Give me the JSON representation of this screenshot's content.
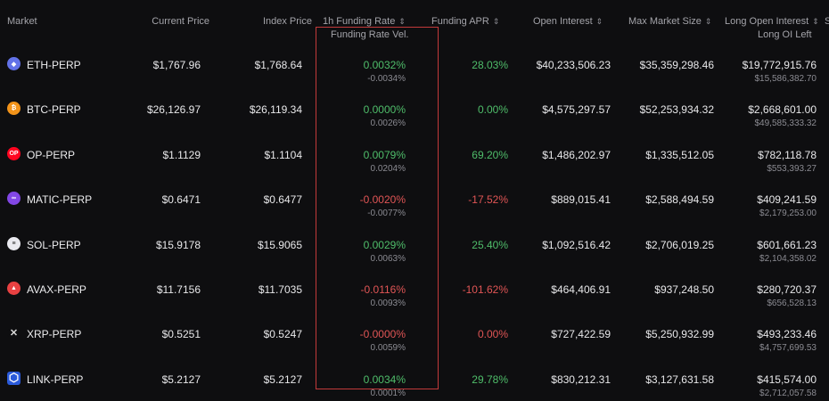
{
  "columns": {
    "market": "Market",
    "current_price": "Current Price",
    "index_price": "Index Price",
    "funding_rate": "1h Funding Rate",
    "funding_rate_vel": "Funding Rate Vel.",
    "funding_apr": "Funding APR",
    "open_interest": "Open Interest",
    "max_market_size": "Max Market Size",
    "long_open_interest": "Long Open Interest",
    "long_oi_left": "Long OI Left",
    "cut_off": "S"
  },
  "sort_glyph": "⇕",
  "rows": [
    {
      "symbol": "ETH-PERP",
      "icon": "eth-icon",
      "icon_color": "#6272e8",
      "icon_glyph": "◆",
      "price": "$1,767.96",
      "index": "$1,768.64",
      "rate": "0.0032%",
      "rate_dir": "green",
      "vel": "-0.0034%",
      "apr": "28.03%",
      "apr_dir": "green",
      "oi": "$40,233,506.23",
      "max": "$35,359,298.46",
      "long": "$19,772,915.76",
      "left": "$15,586,382.70"
    },
    {
      "symbol": "BTC-PERP",
      "icon": "btc-icon",
      "icon_color": "#f2931a",
      "icon_glyph": "₿",
      "price": "$26,126.97",
      "index": "$26,119.34",
      "rate": "0.0000%",
      "rate_dir": "green",
      "vel": "0.0026%",
      "apr": "0.00%",
      "apr_dir": "green",
      "oi": "$4,575,297.57",
      "max": "$52,253,934.32",
      "long": "$2,668,601.00",
      "left": "$49,585,333.32"
    },
    {
      "symbol": "OP-PERP",
      "icon": "op-icon",
      "icon_color": "#ff0420",
      "icon_glyph": "OP",
      "price": "$1.1129",
      "index": "$1.1104",
      "rate": "0.0079%",
      "rate_dir": "green",
      "vel": "0.0204%",
      "apr": "69.20%",
      "apr_dir": "green",
      "oi": "$1,486,202.97",
      "max": "$1,335,512.05",
      "long": "$782,118.78",
      "left": "$553,393.27"
    },
    {
      "symbol": "MATIC-PERP",
      "icon": "matic-icon",
      "icon_color": "#8247e5",
      "icon_glyph": "∞",
      "price": "$0.6471",
      "index": "$0.6477",
      "rate": "-0.0020%",
      "rate_dir": "red",
      "vel": "-0.0077%",
      "apr": "-17.52%",
      "apr_dir": "red",
      "oi": "$889,015.41",
      "max": "$2,588,494.59",
      "long": "$409,241.59",
      "left": "$2,179,253.00"
    },
    {
      "symbol": "SOL-PERP",
      "icon": "sol-icon",
      "icon_color": "#e9e9ef",
      "icon_glyph": "≡",
      "price": "$15.9178",
      "index": "$15.9065",
      "rate": "0.0029%",
      "rate_dir": "green",
      "vel": "0.0063%",
      "apr": "25.40%",
      "apr_dir": "green",
      "oi": "$1,092,516.42",
      "max": "$2,706,019.25",
      "long": "$601,661.23",
      "left": "$2,104,358.02"
    },
    {
      "symbol": "AVAX-PERP",
      "icon": "avax-icon",
      "icon_color": "#e84142",
      "icon_glyph": "▲",
      "price": "$11.7156",
      "index": "$11.7035",
      "rate": "-0.0116%",
      "rate_dir": "red",
      "vel": "0.0093%",
      "apr": "-101.62%",
      "apr_dir": "red",
      "oi": "$464,406.91",
      "max": "$937,248.50",
      "long": "$280,720.37",
      "left": "$656,528.13"
    },
    {
      "symbol": "XRP-PERP",
      "icon": "xrp-icon",
      "icon_color": "#0e0e10",
      "icon_glyph": "✕",
      "price": "$0.5251",
      "index": "$0.5247",
      "rate": "-0.0000%",
      "rate_dir": "red",
      "vel": "0.0059%",
      "apr": "0.00%",
      "apr_dir": "red",
      "oi": "$727,422.59",
      "max": "$5,250,932.99",
      "long": "$493,233.46",
      "left": "$4,757,699.53"
    },
    {
      "symbol": "LINK-PERP",
      "icon": "link-icon",
      "icon_color": "#2a5ada",
      "icon_glyph": "⬡",
      "price": "$5.2127",
      "index": "$5.2127",
      "rate": "0.0034%",
      "rate_dir": "green",
      "vel": "0.0001%",
      "apr": "29.78%",
      "apr_dir": "green",
      "oi": "$830,212.31",
      "max": "$3,127,631.58",
      "long": "$415,574.00",
      "left": "$2,712,057.58"
    }
  ]
}
